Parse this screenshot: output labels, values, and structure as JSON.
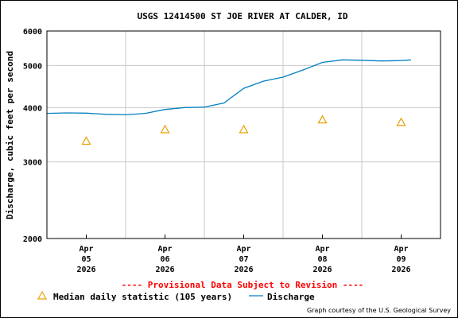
{
  "chart_data": {
    "type": "line",
    "title": "USGS 12414500 ST JOE RIVER AT CALDER, ID",
    "ylabel": "Discharge, cubic feet per second",
    "xlabel": "",
    "y_scale": "log",
    "ylim": [
      2000,
      6000
    ],
    "y_ticks": [
      "2000",
      "3000",
      "4000",
      "5000",
      "6000"
    ],
    "x_range": [
      "2026-04-04 12:00",
      "2026-04-09 12:00"
    ],
    "x_ticks": [
      {
        "date": "2026-04-05",
        "lines": [
          "Apr",
          "05",
          "2026"
        ]
      },
      {
        "date": "2026-04-06",
        "lines": [
          "Apr",
          "06",
          "2026"
        ]
      },
      {
        "date": "2026-04-07",
        "lines": [
          "Apr",
          "07",
          "2026"
        ]
      },
      {
        "date": "2026-04-08",
        "lines": [
          "Apr",
          "08",
          "2026"
        ]
      },
      {
        "date": "2026-04-09",
        "lines": [
          "Apr",
          "09",
          "2026"
        ]
      }
    ],
    "grid": true,
    "series": [
      {
        "name": "Discharge",
        "color": "#0080c0",
        "style": "line",
        "points": [
          [
            "2026-04-04 12:00",
            3880
          ],
          [
            "2026-04-04 18:00",
            3890
          ],
          [
            "2026-04-05 00:00",
            3885
          ],
          [
            "2026-04-05 06:00",
            3860
          ],
          [
            "2026-04-05 12:00",
            3850
          ],
          [
            "2026-04-05 18:00",
            3880
          ],
          [
            "2026-04-06 00:00",
            3960
          ],
          [
            "2026-04-06 06:00",
            4000
          ],
          [
            "2026-04-06 12:00",
            4010
          ],
          [
            "2026-04-06 18:00",
            4100
          ],
          [
            "2026-04-07 00:00",
            4430
          ],
          [
            "2026-04-07 06:00",
            4600
          ],
          [
            "2026-04-07 12:00",
            4700
          ],
          [
            "2026-04-07 18:00",
            4880
          ],
          [
            "2026-04-08 00:00",
            5080
          ],
          [
            "2026-04-08 06:00",
            5150
          ],
          [
            "2026-04-08 12:00",
            5140
          ],
          [
            "2026-04-08 18:00",
            5120
          ],
          [
            "2026-04-09 00:00",
            5130
          ],
          [
            "2026-04-09 03:00",
            5150
          ]
        ]
      },
      {
        "name": "Median daily statistic (105 years)",
        "color": "#e8a000",
        "style": "triangle",
        "points": [
          [
            "2026-04-05 00:00",
            3350
          ],
          [
            "2026-04-06 00:00",
            3560
          ],
          [
            "2026-04-07 00:00",
            3560
          ],
          [
            "2026-04-08 00:00",
            3750
          ],
          [
            "2026-04-09 00:00",
            3700
          ]
        ]
      }
    ]
  },
  "notes": {
    "provisional": "---- Provisional Data Subject to Revision ----",
    "credit": "Graph courtesy of the U.S. Geological Survey"
  }
}
